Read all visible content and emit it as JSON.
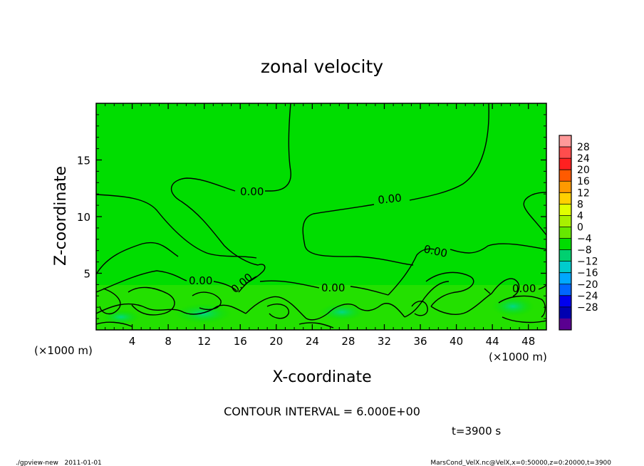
{
  "chart_data": {
    "type": "contour",
    "title": "zonal velocity",
    "xlabel": "X-coordinate",
    "ylabel": "Z-coordinate",
    "x_unit": "(×1000 m)",
    "y_unit": "(×1000 m)",
    "xlim": [
      0,
      50
    ],
    "ylim": [
      0,
      20
    ],
    "x_ticks": [
      4,
      8,
      12,
      16,
      20,
      24,
      28,
      32,
      36,
      40,
      44,
      48
    ],
    "y_ticks": [
      5,
      10,
      15
    ],
    "contour_interval_label": "CONTOUR INTERVAL = 6.000E+00",
    "contour_labels": [
      "0.00",
      "0.00",
      "0.00",
      "0.00",
      "0.00",
      "0.00",
      "0.00"
    ],
    "time_label": "t=3900 s",
    "colorbar": {
      "levels": [
        "28",
        "24",
        "20",
        "16",
        "12",
        "8",
        "4",
        "0",
        "−4",
        "−8",
        "−12",
        "−16",
        "−20",
        "−24",
        "−28"
      ],
      "colors": [
        "#ff9999",
        "#ff4d4d",
        "#ff2020",
        "#ff5a00",
        "#ff9a00",
        "#ffd000",
        "#e0ff00",
        "#a8f000",
        "#66e800",
        "#00dd00",
        "#00d070",
        "#00cccc",
        "#00a8ff",
        "#0066ff",
        "#0000ee",
        "#0000b0",
        "#5a0090"
      ]
    },
    "footer_left": "./gpview-new   2011-01-01",
    "footer_right": "MarsCond_VelX.nc@VelX,x=0:50000,z=0:20000,t=3900"
  }
}
